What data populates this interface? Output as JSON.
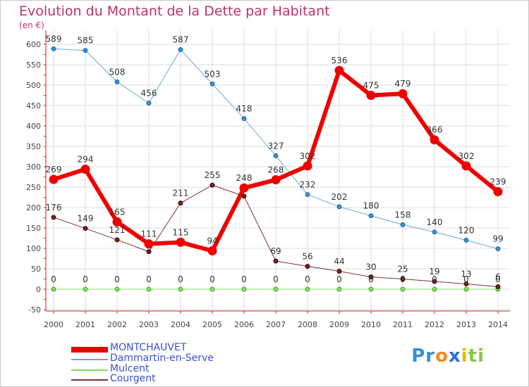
{
  "title": "Evolution du Montant de la Dette par Habitant",
  "unit_label": "(en €)",
  "brand": {
    "p": "Pr",
    "o": "o",
    "x": "x",
    "i": "i",
    "t": "ti"
  },
  "chart_data": {
    "type": "line",
    "x": [
      "2000",
      "2001",
      "2002",
      "2003",
      "2004",
      "2005",
      "2006",
      "2007",
      "2008",
      "2009",
      "2010",
      "2011",
      "2012",
      "2013",
      "2014"
    ],
    "ylim": [
      -50,
      600
    ],
    "yticks": [
      "-50",
      "0",
      "50",
      "100",
      "150",
      "200",
      "250",
      "300",
      "350",
      "400",
      "450",
      "500",
      "550",
      "600"
    ],
    "grid": true,
    "legend_position": "bottom-left",
    "series": [
      {
        "name": "MONTCHAUVET",
        "color": "#ee0000",
        "values": [
          269,
          294,
          165,
          111,
          115,
          94,
          248,
          268,
          302,
          536,
          475,
          479,
          366,
          302,
          239
        ],
        "labels": [
          "269",
          "294",
          "165",
          "111",
          "115",
          "94",
          "248",
          "268",
          "302",
          "536",
          "475",
          "479",
          "366",
          "302",
          "239"
        ]
      },
      {
        "name": "Dammartin-en-Serve",
        "color": "#6aa8d8",
        "values": [
          589,
          585,
          508,
          456,
          587,
          503,
          418,
          327,
          232,
          202,
          180,
          158,
          140,
          120,
          99
        ],
        "labels": [
          "589",
          "585",
          "508",
          "456",
          "587",
          "503",
          "418",
          "327",
          "232",
          "202",
          "180",
          "158",
          "140",
          "120",
          "99"
        ]
      },
      {
        "name": "Mulcent",
        "color": "#88dd66",
        "values": [
          0,
          0,
          0,
          0,
          0,
          0,
          0,
          0,
          0,
          0,
          0,
          0,
          0,
          0,
          0
        ],
        "labels": [
          "0",
          "0",
          "0",
          "0",
          "0",
          "0",
          "0",
          "0",
          "0",
          "0",
          "0",
          "0",
          "0",
          "0",
          "0"
        ]
      },
      {
        "name": "Courgent",
        "color": "#7a3535",
        "values": [
          176,
          149,
          121,
          92,
          211,
          255,
          228,
          69,
          56,
          44,
          30,
          25,
          19,
          13,
          6
        ],
        "labels": [
          "176",
          "149",
          "121",
          "",
          "211",
          "255",
          "",
          "69",
          "56",
          "44",
          "30",
          "25",
          "19",
          "13",
          "6"
        ]
      }
    ]
  }
}
